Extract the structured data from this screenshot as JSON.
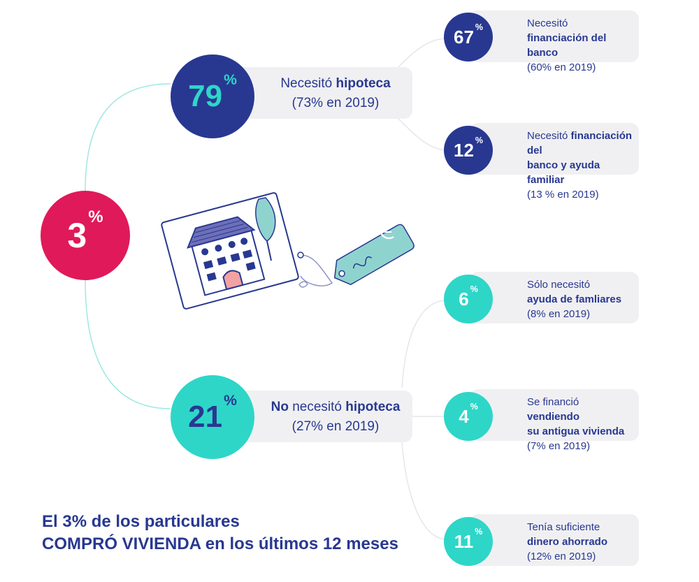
{
  "root": {
    "value": "3",
    "unit": "%",
    "color": "#e0195a"
  },
  "branches": [
    {
      "value": "79",
      "unit": "%",
      "label_pre": "Necesitó ",
      "label_bold": "hipoteca",
      "label_pre_bold": "",
      "sub": "(73% en 2019)",
      "children": [
        {
          "value": "67",
          "unit": "%",
          "line1_pre": "Necesitó",
          "line1_bold": "",
          "line2_pre": "",
          "line2_bold": "financiación del banco",
          "line3": "(60% en 2019)"
        },
        {
          "value": "12",
          "unit": "%",
          "line1_pre": "Necesitó ",
          "line1_bold": "financiación del",
          "line2_pre": "",
          "line2_bold": "banco y ayuda familiar",
          "line3": "(13 % en 2019)"
        }
      ]
    },
    {
      "value": "21",
      "unit": "%",
      "label_pre": " necesitó ",
      "label_bold": "hipoteca",
      "label_pre_bold": "No",
      "sub": "(27% en 2019)",
      "children": [
        {
          "value": "6",
          "unit": "%",
          "line1_pre": "Sólo necesitó",
          "line1_bold": "",
          "line2_pre": "",
          "line2_bold": "ayuda de famliares",
          "line3": "(8% en 2019)"
        },
        {
          "value": "4",
          "unit": "%",
          "line1_pre": "Se financió ",
          "line1_bold": "vendiendo",
          "line2_pre": "",
          "line2_bold": "su antigua vivienda",
          "line3": "(7% en 2019)"
        },
        {
          "value": "11",
          "unit": "%",
          "line1_pre": "Tenía suficiente",
          "line1_bold": "",
          "line2_pre": "",
          "line2_bold": "dinero ahorrado",
          "line3": "(12% en 2019)"
        }
      ]
    }
  ],
  "footer": {
    "line1": "El 3% de los particulares",
    "line2_bold": "COMPRÓ VIVIENDA",
    "line2_rest": " en los últimos 12 meses"
  },
  "colors": {
    "navy": "#283891",
    "teal": "#2ed6c8",
    "pink": "#e0195a",
    "card": "#f0f0f2"
  },
  "illustration": {
    "icons": [
      "house-icon",
      "tree-icon",
      "price-tag-icon",
      "euro-icon"
    ]
  }
}
